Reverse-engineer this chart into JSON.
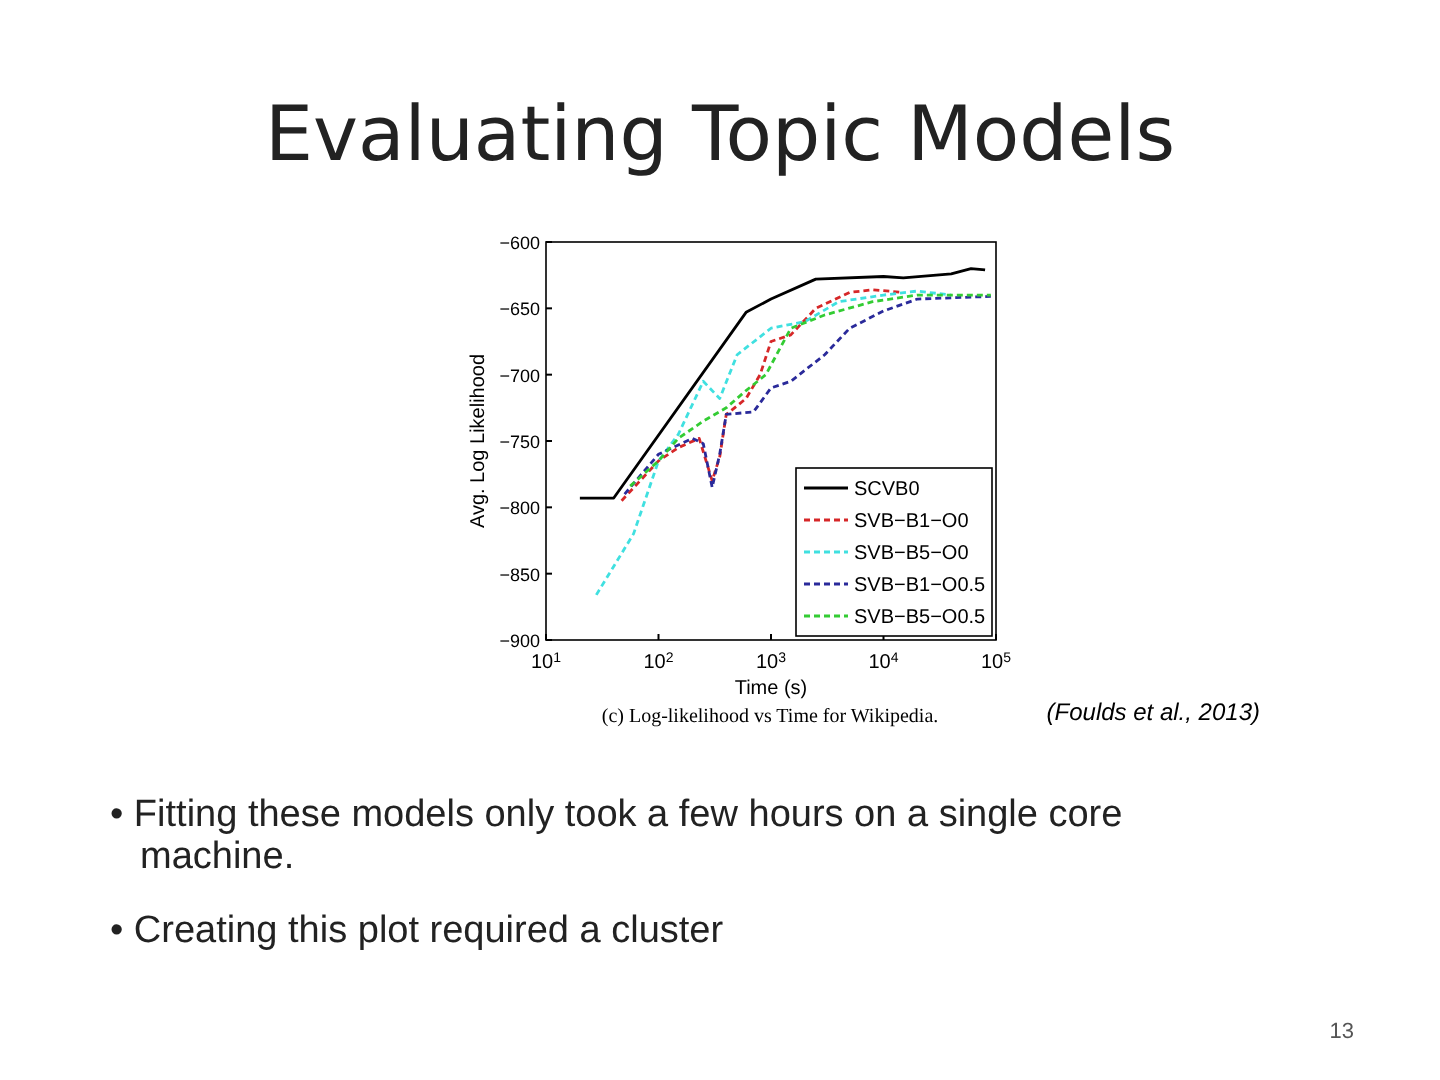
{
  "chart_data": {
    "type": "line",
    "title": "Evaluating Topic Models",
    "xlabel": "Time (s)",
    "ylabel": "Avg. Log Likelihood",
    "log": "x",
    "grid": false,
    "legend": "bottom right",
    "line_style": "dashed",
    "xlim": [
      10,
      100000
    ],
    "xticks": [
      {
        "value": 10,
        "label": "10$^{1}$"
      },
      {
        "value": 100,
        "label": "10$^{2}$"
      },
      {
        "value": 1000,
        "label": "10$^{3}$"
      },
      {
        "value": 10000,
        "label": "10$^{4}$"
      },
      {
        "value": 100000,
        "label": "10$^{5}$"
      }
    ],
    "ylim": [
      -900,
      -600
    ],
    "yticks": [
      {
        "value": -900,
        "label": "−900"
      },
      {
        "value": -850,
        "label": "−850"
      },
      {
        "value": -800,
        "label": "−800"
      },
      {
        "value": -750,
        "label": "−750"
      },
      {
        "value": -700,
        "label": "−700"
      },
      {
        "value": -650,
        "label": "−650"
      },
      {
        "value": -600,
        "label": "−600"
      }
    ],
    "series": [
      {
        "name": "SCVB0",
        "color": "#000000",
        "line_style": "solid",
        "x": [
          20,
          40,
          600,
          1000,
          2500,
          10000,
          15000,
          40000,
          60000,
          80000
        ],
        "values": [
          -793,
          -793,
          -653,
          -643,
          -628,
          -626,
          -627,
          -624,
          -620,
          -621
        ]
      },
      {
        "name": "SVB−B1−O0",
        "color": "#d62728",
        "x": [
          47,
          100,
          150,
          230,
          300,
          350,
          400,
          600,
          800,
          1000,
          1500,
          2500,
          5000,
          8000,
          15000
        ],
        "values": [
          -795,
          -765,
          -755,
          -748,
          -780,
          -762,
          -730,
          -718,
          -700,
          -675,
          -670,
          -650,
          -638,
          -636,
          -638
        ]
      },
      {
        "name": "SVB−B5−O0",
        "color": "#40e0e0",
        "x": [
          28,
          60,
          100,
          150,
          250,
          350,
          500,
          1000,
          2000,
          4000,
          10000,
          20000,
          40000
        ],
        "values": [
          -866,
          -820,
          -765,
          -745,
          -705,
          -718,
          -685,
          -665,
          -660,
          -645,
          -640,
          -637,
          -640
        ]
      },
      {
        "name": "SVB−B1−O0.5",
        "color": "#2a2a9a",
        "x": [
          50,
          100,
          200,
          250,
          300,
          350,
          400,
          700,
          1000,
          1500,
          3000,
          5000,
          10000,
          20000,
          90000
        ],
        "values": [
          -790,
          -760,
          -748,
          -752,
          -785,
          -760,
          -730,
          -728,
          -710,
          -705,
          -685,
          -665,
          -652,
          -643,
          -641
        ]
      },
      {
        "name": "SVB−B5−O0.5",
        "color": "#33cc33",
        "x": [
          56,
          100,
          150,
          250,
          400,
          600,
          900,
          1500,
          3000,
          8000,
          20000,
          90000
        ],
        "values": [
          -784,
          -765,
          -748,
          -735,
          -725,
          -712,
          -700,
          -665,
          -655,
          -645,
          -640,
          -640
        ]
      }
    ],
    "annotations": [
      "(c) Log-likelihood vs Time for Wikipedia.",
      "(Foulds et al., 2013)",
      "• Fitting these models only took a few hours on a single core machine.",
      "• Creating this plot required a cluster",
      "13"
    ]
  }
}
